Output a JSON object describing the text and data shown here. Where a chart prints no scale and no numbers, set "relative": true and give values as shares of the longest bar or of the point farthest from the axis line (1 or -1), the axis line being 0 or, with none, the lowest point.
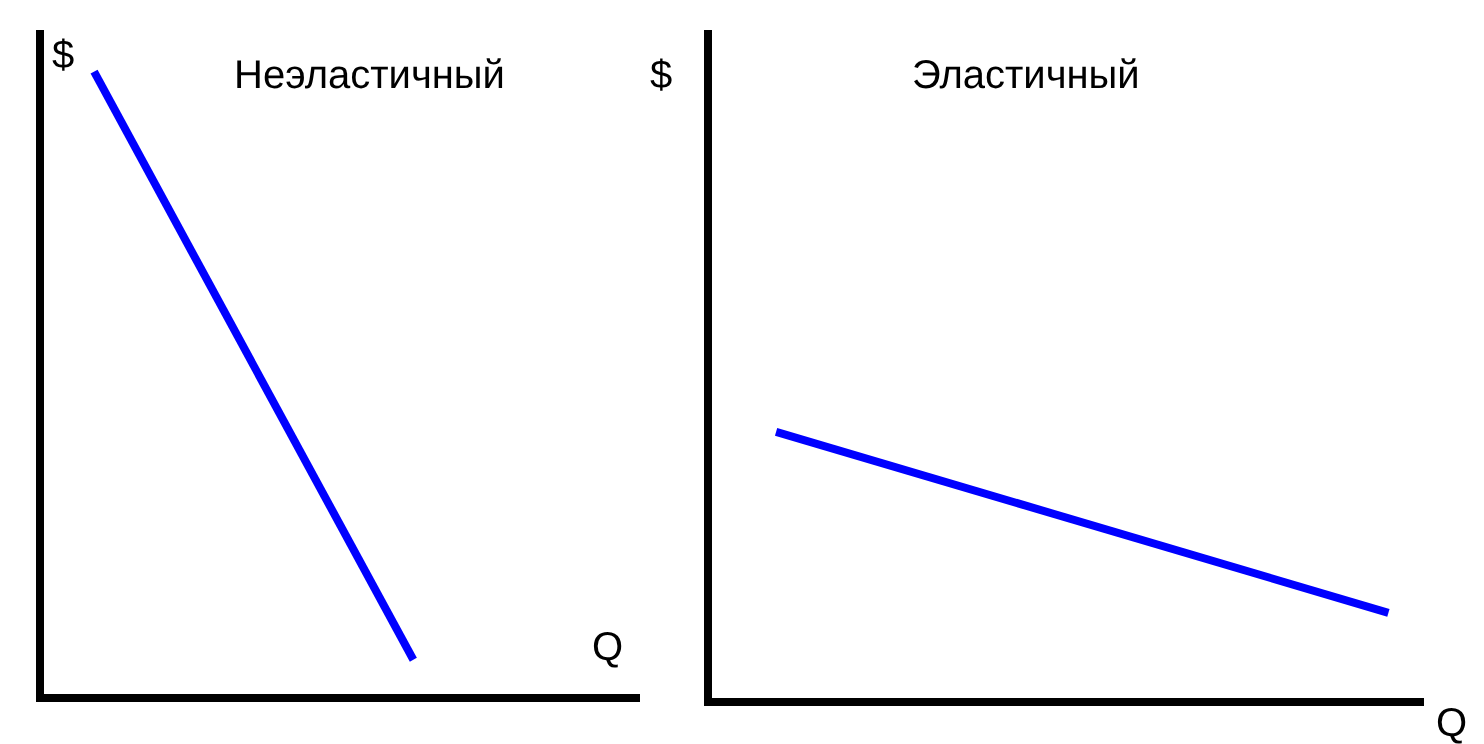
{
  "chart_data": [
    {
      "type": "line",
      "title": "Неэластичный",
      "xlabel": "Q",
      "ylabel": "$",
      "relative": true,
      "categories": [
        null,
        null
      ],
      "series": [
        {
          "color": "#0000ff",
          "values": [
            1,
            0.055
          ]
        }
      ]
    },
    {
      "type": "line",
      "title": "Эластичный",
      "xlabel": "Q",
      "ylabel": "$",
      "relative": true,
      "categories": [
        null,
        null
      ],
      "series": [
        {
          "color": "#0000ff",
          "values": [
            1,
            0.32
          ]
        }
      ]
    }
  ]
}
